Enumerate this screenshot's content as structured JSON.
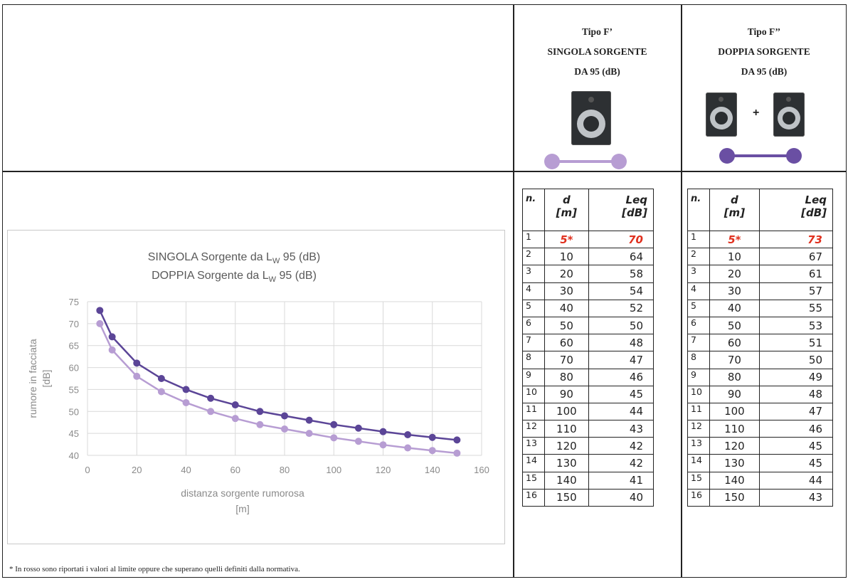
{
  "header": {
    "single": {
      "line1": "Tipo F’",
      "line2": "SINGOLA SORGENTE",
      "line3": "DA 95 (dB)"
    },
    "double": {
      "line1": "Tipo F’’",
      "line2": "DOPPIA SORGENTE",
      "line3": "DA 95 (dB)",
      "plus": "+"
    }
  },
  "colors": {
    "single": "#b79dd3",
    "double": "#6a4fa3",
    "limit_red": "#e0301e"
  },
  "icons": {
    "single_source": "speaker-icon",
    "double_source": "speaker-icon"
  },
  "table_headers": {
    "n": "n.",
    "d": "d",
    "d_unit": "[m]",
    "leq": "Leq",
    "leq_unit": "[dB]"
  },
  "single_table": [
    {
      "n": "1",
      "d": "5*",
      "leq": "70",
      "limit": true
    },
    {
      "n": "2",
      "d": "10",
      "leq": "64"
    },
    {
      "n": "3",
      "d": "20",
      "leq": "58"
    },
    {
      "n": "4",
      "d": "30",
      "leq": "54"
    },
    {
      "n": "5",
      "d": "40",
      "leq": "52"
    },
    {
      "n": "6",
      "d": "50",
      "leq": "50"
    },
    {
      "n": "7",
      "d": "60",
      "leq": "48"
    },
    {
      "n": "8",
      "d": "70",
      "leq": "47"
    },
    {
      "n": "9",
      "d": "80",
      "leq": "46"
    },
    {
      "n": "10",
      "d": "90",
      "leq": "45"
    },
    {
      "n": "11",
      "d": "100",
      "leq": "44"
    },
    {
      "n": "12",
      "d": "110",
      "leq": "43"
    },
    {
      "n": "13",
      "d": "120",
      "leq": "42"
    },
    {
      "n": "14",
      "d": "130",
      "leq": "42"
    },
    {
      "n": "15",
      "d": "140",
      "leq": "41"
    },
    {
      "n": "16",
      "d": "150",
      "leq": "40"
    }
  ],
  "double_table": [
    {
      "n": "1",
      "d": "5*",
      "leq": "73",
      "limit": true
    },
    {
      "n": "2",
      "d": "10",
      "leq": "67"
    },
    {
      "n": "3",
      "d": "20",
      "leq": "61"
    },
    {
      "n": "4",
      "d": "30",
      "leq": "57"
    },
    {
      "n": "5",
      "d": "40",
      "leq": "55"
    },
    {
      "n": "6",
      "d": "50",
      "leq": "53"
    },
    {
      "n": "7",
      "d": "60",
      "leq": "51"
    },
    {
      "n": "8",
      "d": "70",
      "leq": "50"
    },
    {
      "n": "9",
      "d": "80",
      "leq": "49"
    },
    {
      "n": "10",
      "d": "90",
      "leq": "48"
    },
    {
      "n": "11",
      "d": "100",
      "leq": "47"
    },
    {
      "n": "12",
      "d": "110",
      "leq": "46"
    },
    {
      "n": "13",
      "d": "120",
      "leq": "45"
    },
    {
      "n": "14",
      "d": "130",
      "leq": "45"
    },
    {
      "n": "15",
      "d": "140",
      "leq": "44"
    },
    {
      "n": "16",
      "d": "150",
      "leq": "43"
    }
  ],
  "chart_data": {
    "type": "line",
    "title_line1": "SINGOLA Sorgente da L",
    "title_line2": "DOPPIA Sorgente da L",
    "title_sub": "W",
    "title_suffix": " 95 (dB)",
    "xlabel": "distanza sorgente rumorosa",
    "xlabel_unit": "[m]",
    "ylabel": "rumore in facciata",
    "ylabel_unit": "[dB]",
    "xlim": [
      0,
      160
    ],
    "ylim": [
      40,
      75
    ],
    "xticks": [
      "0",
      "20",
      "40",
      "60",
      "80",
      "100",
      "120",
      "140",
      "160"
    ],
    "yticks": [
      "40",
      "45",
      "50",
      "55",
      "60",
      "65",
      "70",
      "75"
    ],
    "grid": true,
    "x": [
      5,
      10,
      20,
      30,
      40,
      50,
      60,
      70,
      80,
      90,
      100,
      110,
      120,
      130,
      140,
      150
    ],
    "series": [
      {
        "key": "double",
        "color": "#5b4597",
        "values": [
          73,
          67,
          61,
          57.5,
          55,
          53,
          51.5,
          50,
          49,
          48,
          47,
          46.2,
          45.4,
          44.7,
          44.1,
          43.5
        ]
      },
      {
        "key": "single",
        "color": "#b79dd3",
        "values": [
          70,
          64,
          58,
          54.5,
          52,
          50,
          48.4,
          47,
          46,
          45,
          44,
          43.2,
          42.4,
          41.7,
          41.1,
          40.5
        ]
      }
    ]
  },
  "footnote": "* In rosso sono riportati i valori al limite oppure che superano quelli definiti dalla normativa."
}
